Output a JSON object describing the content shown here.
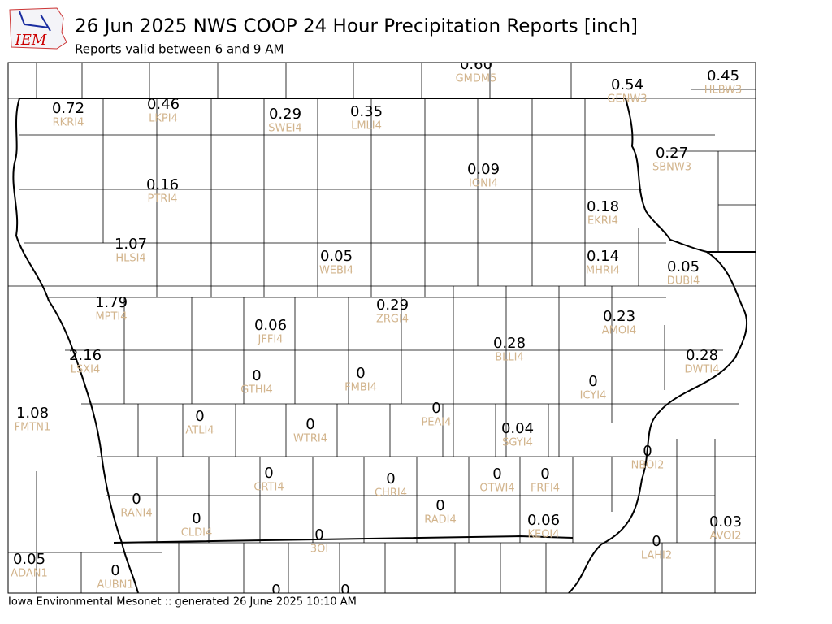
{
  "header": {
    "logo": "IEM",
    "title": "26 Jun 2025 NWS COOP 24 Hour Precipitation Reports [inch]",
    "subtitle": "Reports valid between 6 and 9 AM"
  },
  "stations": [
    {
      "value": "0.60",
      "id": "GMDM5"
    },
    {
      "value": "0.54",
      "id": "GENW3"
    },
    {
      "value": "0.45",
      "id": "HLBW3"
    },
    {
      "value": "0.72",
      "id": "RKRI4"
    },
    {
      "value": "0.46",
      "id": "LKPI4"
    },
    {
      "value": "0.29",
      "id": "SWEI4"
    },
    {
      "value": "0.35",
      "id": "LMLI4"
    },
    {
      "value": "0.27",
      "id": "SBNW3"
    },
    {
      "value": "0.09",
      "id": "IONI4"
    },
    {
      "value": "0.16",
      "id": "PTRI4"
    },
    {
      "value": "0.18",
      "id": "EKRI4"
    },
    {
      "value": "1.07",
      "id": "HLSI4"
    },
    {
      "value": "0.05",
      "id": "WEBI4"
    },
    {
      "value": "0.14",
      "id": "MHRI4"
    },
    {
      "value": "0.05",
      "id": "DUBI4"
    },
    {
      "value": "1.79",
      "id": "MPTI4"
    },
    {
      "value": "0.29",
      "id": "ZRGI4"
    },
    {
      "value": "0.23",
      "id": "AMOI4"
    },
    {
      "value": "0.06",
      "id": "JFFI4"
    },
    {
      "value": "0.28",
      "id": "BLLI4"
    },
    {
      "value": "2.16",
      "id": "LSXI4"
    },
    {
      "value": "0.28",
      "id": "DWTI4"
    },
    {
      "value": "0",
      "id": "GTHI4"
    },
    {
      "value": "0",
      "id": "FMBI4"
    },
    {
      "value": "0",
      "id": "ICYI4"
    },
    {
      "value": "1.08",
      "id": "FMTN1"
    },
    {
      "value": "0",
      "id": "ATLI4"
    },
    {
      "value": "0",
      "id": "WTRI4"
    },
    {
      "value": "0",
      "id": "PEAI4"
    },
    {
      "value": "0.04",
      "id": "SGYI4"
    },
    {
      "value": "0",
      "id": "NBOI2"
    },
    {
      "value": "0",
      "id": "CRTI4"
    },
    {
      "value": "0",
      "id": "CHRI4"
    },
    {
      "value": "0",
      "id": "OTWI4"
    },
    {
      "value": "0",
      "id": "FRFI4"
    },
    {
      "value": "0",
      "id": "RANI4"
    },
    {
      "value": "0",
      "id": "RADI4"
    },
    {
      "value": "0",
      "id": "CLDI4"
    },
    {
      "value": "0.06",
      "id": "KEOI4"
    },
    {
      "value": "0.03",
      "id": "AVOI2"
    },
    {
      "value": "0",
      "id": "3OI"
    },
    {
      "value": "0",
      "id": "LAHI2"
    },
    {
      "value": "0.05",
      "id": "ADAN1"
    },
    {
      "value": "0",
      "id": "AUBN1"
    },
    {
      "value": "0"
    },
    {
      "value": "0"
    }
  ],
  "footer": "Iowa Environmental Mesonet :: generated 26 June 2025 10:10 AM"
}
